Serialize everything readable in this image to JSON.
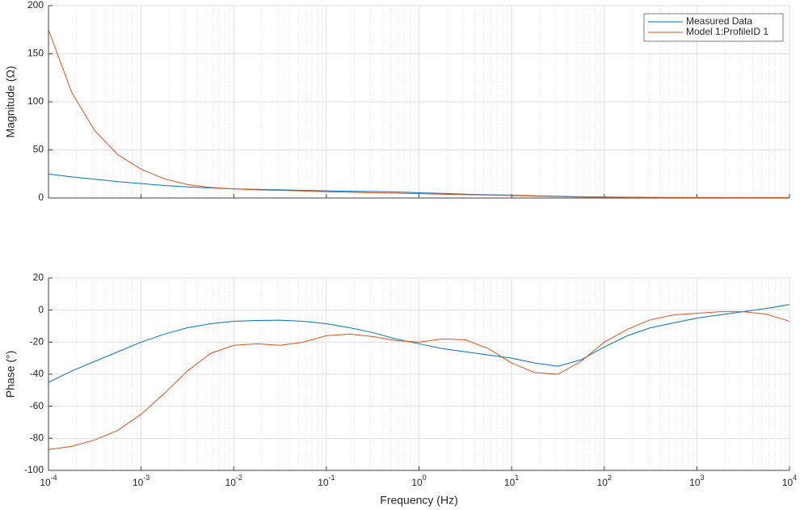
{
  "chart_data": [
    {
      "type": "line",
      "y_label": "Magnitude (Ω)",
      "xscale": "log",
      "grid": true,
      "legend": "upper right",
      "xlim": [
        0.0001,
        10000
      ],
      "xticks": [
        0.0001,
        0.001,
        0.01,
        0.1,
        1,
        10,
        100,
        1000,
        10000
      ],
      "ylim": [
        0,
        200
      ],
      "yticks": [
        0,
        50,
        100,
        150,
        200
      ],
      "x": [
        0.0001,
        0.000178,
        0.000316,
        0.000562,
        0.001,
        0.00178,
        0.00316,
        0.00562,
        0.01,
        0.0178,
        0.0316,
        0.0562,
        0.1,
        0.178,
        0.316,
        0.562,
        1,
        1.78,
        3.16,
        5.62,
        10,
        17.8,
        31.6,
        56.2,
        100,
        178,
        316,
        562,
        1000,
        1780,
        3160,
        5620,
        10000
      ],
      "series": [
        {
          "name": "Measured Data",
          "color": "#0072bd",
          "values": [
            25,
            22,
            19.5,
            17,
            15,
            13,
            11.5,
            10.5,
            9.5,
            9,
            8.5,
            8,
            7.5,
            7,
            6.8,
            6.3,
            5.5,
            4.8,
            4,
            3.4,
            3,
            2.3,
            1.8,
            1.3,
            1,
            0.8,
            0.6,
            0.5,
            0.5,
            0.4,
            0.4,
            0.3,
            0.3
          ]
        },
        {
          "name": "Model 1:ProfileID 1",
          "color": "#d95319",
          "values": [
            175,
            110,
            70,
            45,
            30,
            20,
            14,
            11,
            9.5,
            8.5,
            8,
            7.3,
            6.5,
            6,
            5.5,
            5,
            4.5,
            4,
            3.5,
            3,
            2.6,
            2,
            1.5,
            1.1,
            0.9,
            0.7,
            0.6,
            0.5,
            0.5,
            0.5,
            0.5,
            0.5,
            0.5
          ]
        }
      ]
    },
    {
      "type": "line",
      "y_label": "Phase (°)",
      "x_label": "Frequency (Hz)",
      "xscale": "log",
      "grid": true,
      "xlim": [
        0.0001,
        10000
      ],
      "xticks": [
        {
          "value": 0.0001,
          "label": "10^-4"
        },
        {
          "value": 0.001,
          "label": "10^-3"
        },
        {
          "value": 0.01,
          "label": "10^-2"
        },
        {
          "value": 0.1,
          "label": "10^-1"
        },
        {
          "value": 1,
          "label": "10^0"
        },
        {
          "value": 10,
          "label": "10^1"
        },
        {
          "value": 100,
          "label": "10^2"
        },
        {
          "value": 1000,
          "label": "10^3"
        },
        {
          "value": 10000,
          "label": "10^4"
        }
      ],
      "ylim": [
        -100,
        20
      ],
      "yticks": [
        -100,
        -80,
        -60,
        -40,
        -20,
        0,
        20
      ],
      "x": [
        0.0001,
        0.000178,
        0.000316,
        0.000562,
        0.001,
        0.00178,
        0.00316,
        0.00562,
        0.01,
        0.0178,
        0.0316,
        0.0562,
        0.1,
        0.178,
        0.316,
        0.562,
        1,
        1.78,
        3.16,
        5.62,
        10,
        17.8,
        31.6,
        56.2,
        100,
        178,
        316,
        562,
        1000,
        1780,
        3160,
        5620,
        10000
      ],
      "series": [
        {
          "color": "#0072bd",
          "values": [
            -45,
            -38,
            -32,
            -26,
            -20,
            -15,
            -11,
            -8.5,
            -7,
            -6.5,
            -6.3,
            -7,
            -8.5,
            -11,
            -14,
            -18,
            -21,
            -24,
            -26,
            -28,
            -30,
            -33,
            -35,
            -31,
            -23,
            -16,
            -11,
            -8,
            -5,
            -3,
            -1,
            1,
            3.5
          ]
        },
        {
          "color": "#d95319",
          "values": [
            -87,
            -85,
            -81,
            -75,
            -65,
            -52,
            -38,
            -27,
            -22,
            -21,
            -22,
            -20,
            -16,
            -15,
            -16.5,
            -19,
            -20,
            -18,
            -18.5,
            -24,
            -33,
            -39,
            -40,
            -32,
            -20,
            -12,
            -6,
            -3,
            -2,
            -1,
            -1,
            -2.5,
            -7
          ]
        }
      ]
    }
  ]
}
